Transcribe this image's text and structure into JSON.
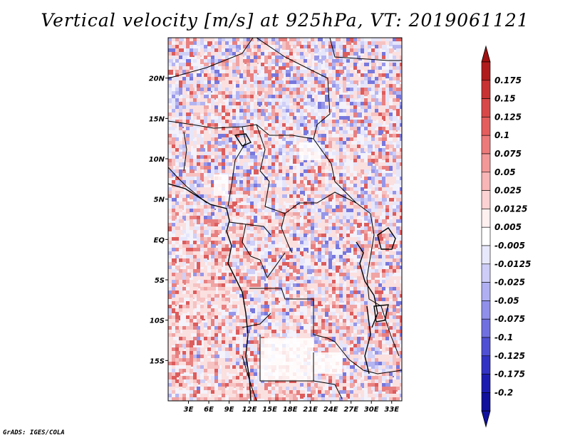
{
  "title": "Vertical velocity [m/s] at 925hPa, VT: 2019061121",
  "footer": "GrADS: IGES/COLA",
  "map": {
    "lon_range": [
      0,
      34.5
    ],
    "lat_range": [
      -20,
      25
    ],
    "lon_ticks": [
      "3E",
      "6E",
      "9E",
      "12E",
      "15E",
      "18E",
      "21E",
      "24E",
      "27E",
      "30E",
      "33E"
    ],
    "lat_ticks": [
      "20N",
      "15N",
      "10N",
      "5N",
      "EQ",
      "5S",
      "10S",
      "15S"
    ],
    "lon_values": [
      3,
      6,
      9,
      12,
      15,
      18,
      21,
      24,
      27,
      30,
      33
    ],
    "lat_values": [
      20,
      15,
      10,
      5,
      0,
      -5,
      -10,
      -15
    ]
  },
  "colorbar": {
    "labels": [
      "0.175",
      "0.15",
      "0.125",
      "0.1",
      "0.075",
      "0.05",
      "0.025",
      "0.0125",
      "0.005",
      "-0.005",
      "-0.0125",
      "-0.025",
      "-0.05",
      "-0.075",
      "-0.1",
      "-0.125",
      "-0.175",
      "-0.2"
    ],
    "colors": [
      "#b01c1c",
      "#c83232",
      "#d84848",
      "#e45e5e",
      "#ec7a7a",
      "#f29898",
      "#f8b6b6",
      "#fcd2d2",
      "#fff0f0",
      "#ffffff",
      "#e8e8fc",
      "#cdcdf8",
      "#afaff2",
      "#9090ea",
      "#7070e0",
      "#5050d4",
      "#3232c4",
      "#1c1cb0",
      "#10109c"
    ],
    "max_color": "#a01010",
    "min_color": "#1010a0"
  }
}
